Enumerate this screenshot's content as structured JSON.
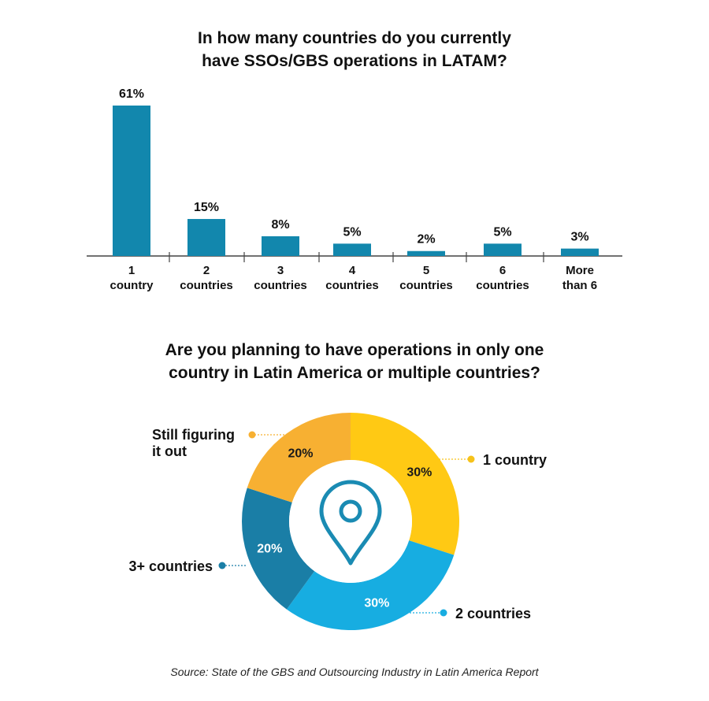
{
  "chart_data": [
    {
      "type": "bar",
      "title": [
        "In how many countries do you currently",
        "have SSOs/GBS operations in LATAM?"
      ],
      "categories": [
        [
          "1",
          "country"
        ],
        [
          "2",
          "countries"
        ],
        [
          "3",
          "countries"
        ],
        [
          "4",
          "countries"
        ],
        [
          "5",
          "countries"
        ],
        [
          "6",
          "countries"
        ],
        [
          "More",
          "than 6"
        ]
      ],
      "values": [
        61,
        15,
        8,
        5,
        2,
        5,
        3
      ],
      "value_labels": [
        "61%",
        "15%",
        "8%",
        "5%",
        "2%",
        "5%",
        "3%"
      ],
      "bar_color": "#1287ad",
      "grid": false
    },
    {
      "type": "pie",
      "title": [
        "Are you planning to have operations in only one",
        "country in Latin America or multiple countries?"
      ],
      "center_icon": "map-pin-icon",
      "slices": [
        {
          "label": "1 country",
          "value": 30,
          "value_label": "30%",
          "color": "#ffc914"
        },
        {
          "label": "2 countries",
          "value": 30,
          "value_label": "30%",
          "color": "#17ade1"
        },
        {
          "label": "3+ countries",
          "value": 20,
          "value_label": "20%",
          "color": "#1a7ea6"
        },
        {
          "label": [
            "Still figuring",
            "it out"
          ],
          "value": 20,
          "value_label": "20%",
          "color": "#f7b032"
        }
      ]
    }
  ],
  "source": "Source: State of the GBS and Outsourcing Industry in Latin America Report"
}
